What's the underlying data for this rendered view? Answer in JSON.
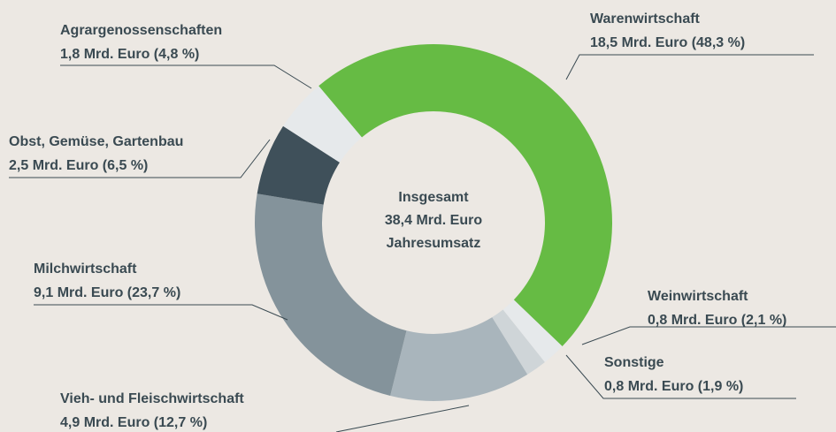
{
  "chart_data": {
    "type": "pie",
    "donut": true,
    "categories": [
      "Warenwirtschaft",
      "Weinwirtschaft",
      "Sonstige",
      "Vieh- und Fleischwirtschaft",
      "Milchwirtschaft",
      "Obst, Gemüse, Gartenbau",
      "Agrargenossenschaften"
    ],
    "values": [
      48.3,
      2.1,
      1.9,
      12.7,
      23.7,
      6.5,
      4.8
    ],
    "value_labels": [
      "18,5 Mrd. Euro (48,3 %)",
      "0,8 Mrd. Euro (2,1 %)",
      "0,8 Mrd. Euro (1,9 %)",
      "4,9 Mrd. Euro (12,7 %)",
      "9,1 Mrd. Euro (23,7 %)",
      "2,5 Mrd. Euro (6,5 %)",
      "1,8 Mrd. Euro (4,8 %)"
    ],
    "colors": [
      "#66bb44",
      "#e6e9eb",
      "#cfd5d8",
      "#a9b5bc",
      "#84939b",
      "#3f505a",
      "#e6e9eb"
    ],
    "center_text": [
      "Insgesamt",
      "38,4 Mrd. Euro",
      "Jahresumsatz"
    ]
  }
}
